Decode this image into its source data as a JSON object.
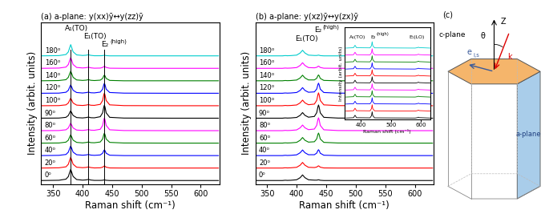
{
  "chart_data": [
    {
      "type": "line",
      "title": "(a) a-plane: y(xx)ȳ↔y(zz)ȳ",
      "x_label": "Raman shift (cm⁻¹)",
      "y_label": "Intensity (arbit. units)",
      "x": [
        330,
        360,
        372,
        376,
        378,
        380,
        382,
        384,
        390,
        400,
        406,
        410,
        414,
        420,
        430,
        434,
        436,
        437,
        438,
        440,
        446,
        470,
        550,
        630
      ],
      "series": [
        {
          "name": "0⁰",
          "color": "#000000",
          "values": [
            0.3,
            0.32,
            0.41,
            0.62,
            0.92,
            1.2,
            0.92,
            0.63,
            0.38,
            0.33,
            0.35,
            0.39,
            0.34,
            0.31,
            0.31,
            0.32,
            0.34,
            0.35,
            0.34,
            0.32,
            0.3,
            0.3,
            0.3,
            0.3
          ]
        },
        {
          "name": "20⁰",
          "color": "#ff0000",
          "values": [
            1.3,
            1.32,
            1.4,
            1.61,
            1.9,
            2.17,
            1.9,
            1.61,
            1.37,
            1.33,
            1.35,
            1.39,
            1.34,
            1.31,
            1.32,
            1.37,
            1.44,
            1.47,
            1.44,
            1.37,
            1.31,
            1.3,
            1.3,
            1.3
          ]
        },
        {
          "name": "40⁰",
          "color": "#0000ff",
          "values": [
            2.3,
            2.32,
            2.39,
            2.58,
            2.84,
            3.08,
            2.84,
            2.58,
            2.37,
            2.33,
            2.35,
            2.39,
            2.34,
            2.32,
            2.35,
            2.49,
            2.7,
            2.76,
            2.7,
            2.49,
            2.33,
            2.3,
            2.3,
            2.3
          ]
        },
        {
          "name": "60⁰",
          "color": "#008000",
          "values": [
            3.3,
            3.31,
            3.38,
            3.54,
            3.77,
            3.98,
            3.77,
            3.54,
            3.36,
            3.32,
            3.35,
            3.39,
            3.34,
            3.33,
            3.39,
            3.63,
            3.99,
            4.1,
            3.99,
            3.63,
            3.36,
            3.31,
            3.3,
            3.3
          ]
        },
        {
          "name": "80⁰",
          "color": "#ff00ff",
          "values": [
            4.3,
            4.31,
            4.37,
            4.52,
            4.72,
            4.91,
            4.72,
            4.52,
            4.35,
            4.32,
            4.35,
            4.39,
            4.34,
            4.33,
            4.41,
            4.72,
            5.18,
            5.32,
            5.18,
            4.72,
            4.37,
            4.31,
            4.3,
            4.3
          ]
        },
        {
          "name": "90⁰",
          "color": "#000000",
          "values": [
            5.3,
            5.31,
            5.37,
            5.52,
            5.71,
            5.9,
            5.71,
            5.52,
            5.35,
            5.32,
            5.35,
            5.39,
            5.34,
            5.33,
            5.42,
            5.73,
            6.2,
            6.35,
            6.2,
            5.73,
            5.37,
            5.31,
            5.3,
            5.3
          ]
        },
        {
          "name": "100⁰",
          "color": "#ff0000",
          "values": [
            6.3,
            6.31,
            6.37,
            6.52,
            6.72,
            6.91,
            6.72,
            6.52,
            6.35,
            6.32,
            6.35,
            6.39,
            6.34,
            6.33,
            6.41,
            6.72,
            7.18,
            7.32,
            7.18,
            6.72,
            6.37,
            6.31,
            6.3,
            6.3
          ]
        },
        {
          "name": "120⁰",
          "color": "#0000ff",
          "values": [
            7.3,
            7.31,
            7.38,
            7.54,
            7.77,
            7.98,
            7.77,
            7.54,
            7.36,
            7.32,
            7.35,
            7.39,
            7.34,
            7.33,
            7.39,
            7.63,
            7.99,
            8.1,
            7.99,
            7.63,
            7.36,
            7.31,
            7.3,
            7.3
          ]
        },
        {
          "name": "140⁰",
          "color": "#008000",
          "values": [
            8.3,
            8.32,
            8.39,
            8.58,
            8.84,
            9.08,
            8.84,
            8.58,
            8.37,
            8.33,
            8.35,
            8.39,
            8.34,
            8.32,
            8.35,
            8.49,
            8.7,
            8.76,
            8.7,
            8.49,
            8.33,
            8.3,
            8.3,
            8.3
          ]
        },
        {
          "name": "160⁰",
          "color": "#ff00ff",
          "values": [
            9.3,
            9.32,
            9.4,
            9.61,
            9.9,
            10.17,
            9.9,
            9.61,
            9.37,
            9.33,
            9.35,
            9.39,
            9.34,
            9.31,
            9.32,
            9.37,
            9.44,
            9.47,
            9.44,
            9.37,
            9.31,
            9.3,
            9.3,
            9.3
          ]
        },
        {
          "name": "180⁰",
          "color": "#00cccc",
          "values": [
            10.3,
            10.32,
            10.41,
            10.62,
            10.92,
            11.2,
            10.92,
            10.63,
            10.38,
            10.33,
            10.35,
            10.39,
            10.34,
            10.31,
            10.31,
            10.32,
            10.34,
            10.35,
            10.34,
            10.32,
            10.3,
            10.3,
            10.3,
            10.3
          ]
        }
      ],
      "xlim": [
        330,
        632
      ],
      "ylim": [
        0,
        13
      ],
      "xticks": [
        350,
        400,
        450,
        500,
        550,
        600
      ],
      "tick_labels": "x",
      "vlines": [
        380,
        410,
        437
      ],
      "annotations": [
        {
          "text": "A₁(TO)",
          "x": 370,
          "y": 12.2
        },
        {
          "text": "E₁(TO)",
          "x": 401,
          "y": 11.55
        },
        {
          "text": "E₂",
          "superscript": "(high)",
          "x": 432,
          "y": 10.9
        }
      ]
    },
    {
      "type": "line",
      "title": "(b) a-plane: y(xz)ȳ↔y(zx)ȳ",
      "x_label": "Raman shift (cm⁻¹)",
      "y_label": "Intensity (arbit. units)",
      "x": [
        330,
        360,
        372,
        376,
        378,
        380,
        382,
        384,
        390,
        400,
        406,
        410,
        414,
        420,
        430,
        434,
        436,
        437,
        438,
        440,
        446,
        470,
        550,
        630
      ],
      "series": [
        {
          "name": "0⁰",
          "color": "#000000",
          "values": [
            0.3,
            0.3,
            0.3,
            0.3,
            0.31,
            0.32,
            0.32,
            0.31,
            0.32,
            0.36,
            0.53,
            0.75,
            0.53,
            0.36,
            0.33,
            0.33,
            0.35,
            0.36,
            0.35,
            0.32,
            0.3,
            0.3,
            0.3,
            0.3
          ]
        },
        {
          "name": "20⁰",
          "color": "#ff0000",
          "values": [
            1.3,
            1.3,
            1.3,
            1.3,
            1.31,
            1.32,
            1.32,
            1.31,
            1.32,
            1.36,
            1.53,
            1.75,
            1.53,
            1.36,
            1.34,
            1.38,
            1.45,
            1.48,
            1.45,
            1.37,
            1.31,
            1.3,
            1.3,
            1.3
          ]
        },
        {
          "name": "40⁰",
          "color": "#0000ff",
          "values": [
            2.3,
            2.3,
            2.3,
            2.3,
            2.31,
            2.32,
            2.32,
            2.31,
            2.32,
            2.36,
            2.53,
            2.75,
            2.53,
            2.37,
            2.37,
            2.5,
            2.71,
            2.77,
            2.71,
            2.49,
            2.33,
            2.3,
            2.3,
            2.3
          ]
        },
        {
          "name": "60⁰",
          "color": "#008000",
          "values": [
            3.3,
            3.3,
            3.3,
            3.3,
            3.31,
            3.32,
            3.32,
            3.31,
            3.32,
            3.36,
            3.53,
            3.75,
            3.53,
            3.38,
            3.41,
            3.64,
            4.0,
            4.11,
            4.0,
            3.63,
            3.36,
            3.31,
            3.3,
            3.3
          ]
        },
        {
          "name": "80⁰",
          "color": "#ff00ff",
          "values": [
            4.3,
            4.3,
            4.3,
            4.3,
            4.31,
            4.32,
            4.32,
            4.31,
            4.32,
            4.36,
            4.53,
            4.75,
            4.53,
            4.38,
            4.43,
            4.73,
            5.19,
            5.33,
            5.19,
            4.72,
            4.37,
            4.31,
            4.3,
            4.3
          ]
        },
        {
          "name": "90⁰",
          "color": "#000000",
          "values": [
            5.3,
            5.3,
            5.3,
            5.3,
            5.31,
            5.32,
            5.32,
            5.31,
            5.32,
            5.36,
            5.53,
            5.75,
            5.53,
            5.38,
            5.44,
            5.74,
            6.21,
            6.36,
            6.21,
            5.73,
            5.37,
            5.31,
            5.3,
            5.3
          ]
        },
        {
          "name": "100⁰",
          "color": "#ff0000",
          "values": [
            6.3,
            6.3,
            6.3,
            6.3,
            6.31,
            6.32,
            6.32,
            6.31,
            6.32,
            6.36,
            6.53,
            6.75,
            6.53,
            6.38,
            6.43,
            6.73,
            7.19,
            7.33,
            7.19,
            6.72,
            6.37,
            6.31,
            6.3,
            6.3
          ]
        },
        {
          "name": "120⁰",
          "color": "#0000ff",
          "values": [
            7.3,
            7.3,
            7.3,
            7.3,
            7.31,
            7.32,
            7.32,
            7.31,
            7.32,
            7.36,
            7.53,
            7.75,
            7.53,
            7.38,
            7.41,
            7.64,
            8.0,
            8.11,
            8.0,
            7.63,
            7.36,
            7.31,
            7.3,
            7.3
          ]
        },
        {
          "name": "140⁰",
          "color": "#008000",
          "values": [
            8.3,
            8.3,
            8.3,
            8.3,
            8.31,
            8.32,
            8.32,
            8.31,
            8.32,
            8.36,
            8.53,
            8.75,
            8.53,
            8.37,
            8.37,
            8.5,
            8.71,
            8.77,
            8.71,
            8.49,
            8.33,
            8.3,
            8.3,
            8.3
          ]
        },
        {
          "name": "160⁰",
          "color": "#ff00ff",
          "values": [
            9.3,
            9.3,
            9.3,
            9.3,
            9.31,
            9.32,
            9.32,
            9.31,
            9.32,
            9.36,
            9.53,
            9.75,
            9.53,
            9.36,
            9.34,
            9.38,
            9.45,
            9.48,
            9.45,
            9.37,
            9.31,
            9.3,
            9.3,
            9.3
          ]
        },
        {
          "name": "180⁰",
          "color": "#00cccc",
          "values": [
            10.3,
            10.3,
            10.3,
            10.3,
            10.31,
            10.32,
            10.32,
            10.31,
            10.32,
            10.36,
            10.53,
            10.75,
            10.53,
            10.36,
            10.33,
            10.33,
            10.35,
            10.36,
            10.35,
            10.32,
            10.3,
            10.3,
            10.3,
            10.3
          ]
        }
      ],
      "xlim": [
        330,
        632
      ],
      "ylim": [
        0,
        13
      ],
      "xticks": [
        350,
        400,
        450,
        500,
        550,
        600
      ],
      "tick_labels": "x",
      "annotations": [
        {
          "text": "E₁(TO)",
          "x": 397,
          "y": 11.4
        },
        {
          "text": "E₂",
          "superscript": "(high)",
          "x": 430,
          "y": 12.1
        }
      ]
    },
    {
      "type": "line",
      "x_label": "Raman shift (cm⁻¹)",
      "y_label": "Intensity (arbit. units)",
      "x": [
        350,
        375,
        380,
        385,
        430,
        435,
        437,
        439,
        445,
        580,
        588,
        591,
        594,
        630
      ],
      "series": [
        {
          "color": "#000000",
          "values": [
            0.2,
            0.25,
            0.6,
            0.25,
            0.23,
            0.55,
            1.1,
            0.55,
            0.23,
            0.2,
            0.26,
            0.32,
            0.26,
            0.2
          ]
        },
        {
          "color": "#ff0000",
          "values": [
            1.2,
            1.25,
            1.6,
            1.25,
            1.23,
            1.55,
            2.1,
            1.55,
            1.23,
            1.2,
            1.26,
            1.32,
            1.26,
            1.2
          ]
        },
        {
          "color": "#0000ff",
          "values": [
            2.2,
            2.25,
            2.6,
            2.25,
            2.23,
            2.55,
            3.1,
            2.55,
            2.23,
            2.2,
            2.26,
            2.32,
            2.26,
            2.2
          ]
        },
        {
          "color": "#008000",
          "values": [
            3.2,
            3.25,
            3.6,
            3.25,
            3.23,
            3.55,
            4.1,
            3.55,
            3.23,
            3.2,
            3.26,
            3.32,
            3.26,
            3.2
          ]
        },
        {
          "color": "#ff00ff",
          "values": [
            4.2,
            4.25,
            4.6,
            4.25,
            4.23,
            4.55,
            5.1,
            4.55,
            4.23,
            4.2,
            4.26,
            4.32,
            4.26,
            4.2
          ]
        },
        {
          "color": "#000000",
          "values": [
            5.2,
            5.25,
            5.6,
            5.25,
            5.23,
            5.55,
            6.1,
            5.55,
            5.23,
            5.2,
            5.26,
            5.32,
            5.26,
            5.2
          ]
        },
        {
          "color": "#ff0000",
          "values": [
            6.2,
            6.25,
            6.6,
            6.25,
            6.23,
            6.55,
            7.1,
            6.55,
            6.23,
            6.2,
            6.26,
            6.32,
            6.26,
            6.2
          ]
        },
        {
          "color": "#0000ff",
          "values": [
            7.2,
            7.25,
            7.6,
            7.25,
            7.23,
            7.55,
            8.1,
            7.55,
            7.23,
            7.2,
            7.26,
            7.32,
            7.26,
            7.2
          ]
        },
        {
          "color": "#008000",
          "values": [
            8.2,
            8.25,
            8.6,
            8.25,
            8.23,
            8.55,
            9.1,
            8.55,
            8.23,
            8.2,
            8.26,
            8.32,
            8.26,
            8.2
          ]
        },
        {
          "color": "#ff00ff",
          "values": [
            9.2,
            9.25,
            9.6,
            9.25,
            9.23,
            9.55,
            10.1,
            9.55,
            9.23,
            9.2,
            9.26,
            9.32,
            9.26,
            9.2
          ]
        },
        {
          "color": "#00cccc",
          "values": [
            10.2,
            10.25,
            10.6,
            10.25,
            10.23,
            10.55,
            11.1,
            10.55,
            10.23,
            10.2,
            10.26,
            10.32,
            10.26,
            10.2
          ]
        }
      ],
      "xlim": [
        345,
        630
      ],
      "ylim": [
        0,
        13.2
      ],
      "xticks": [
        400,
        500,
        600
      ],
      "tick_labels": "x",
      "annotations": [
        {
          "text": "A₁(TO)",
          "x": 360,
          "y": 11.5
        },
        {
          "text": "E₂",
          "superscript": "(high)",
          "x": 432,
          "y": 11.5
        },
        {
          "text": "E₁(LO)",
          "x": 560,
          "y": 11.5
        }
      ]
    }
  ],
  "diagram": {
    "label": "(c)",
    "axis": "Z",
    "angle": "θ",
    "top_face": "c-plane",
    "side_face": "a-plane",
    "polarization": "e",
    "polarization_subscript": "i,s",
    "wavevector": "k"
  }
}
